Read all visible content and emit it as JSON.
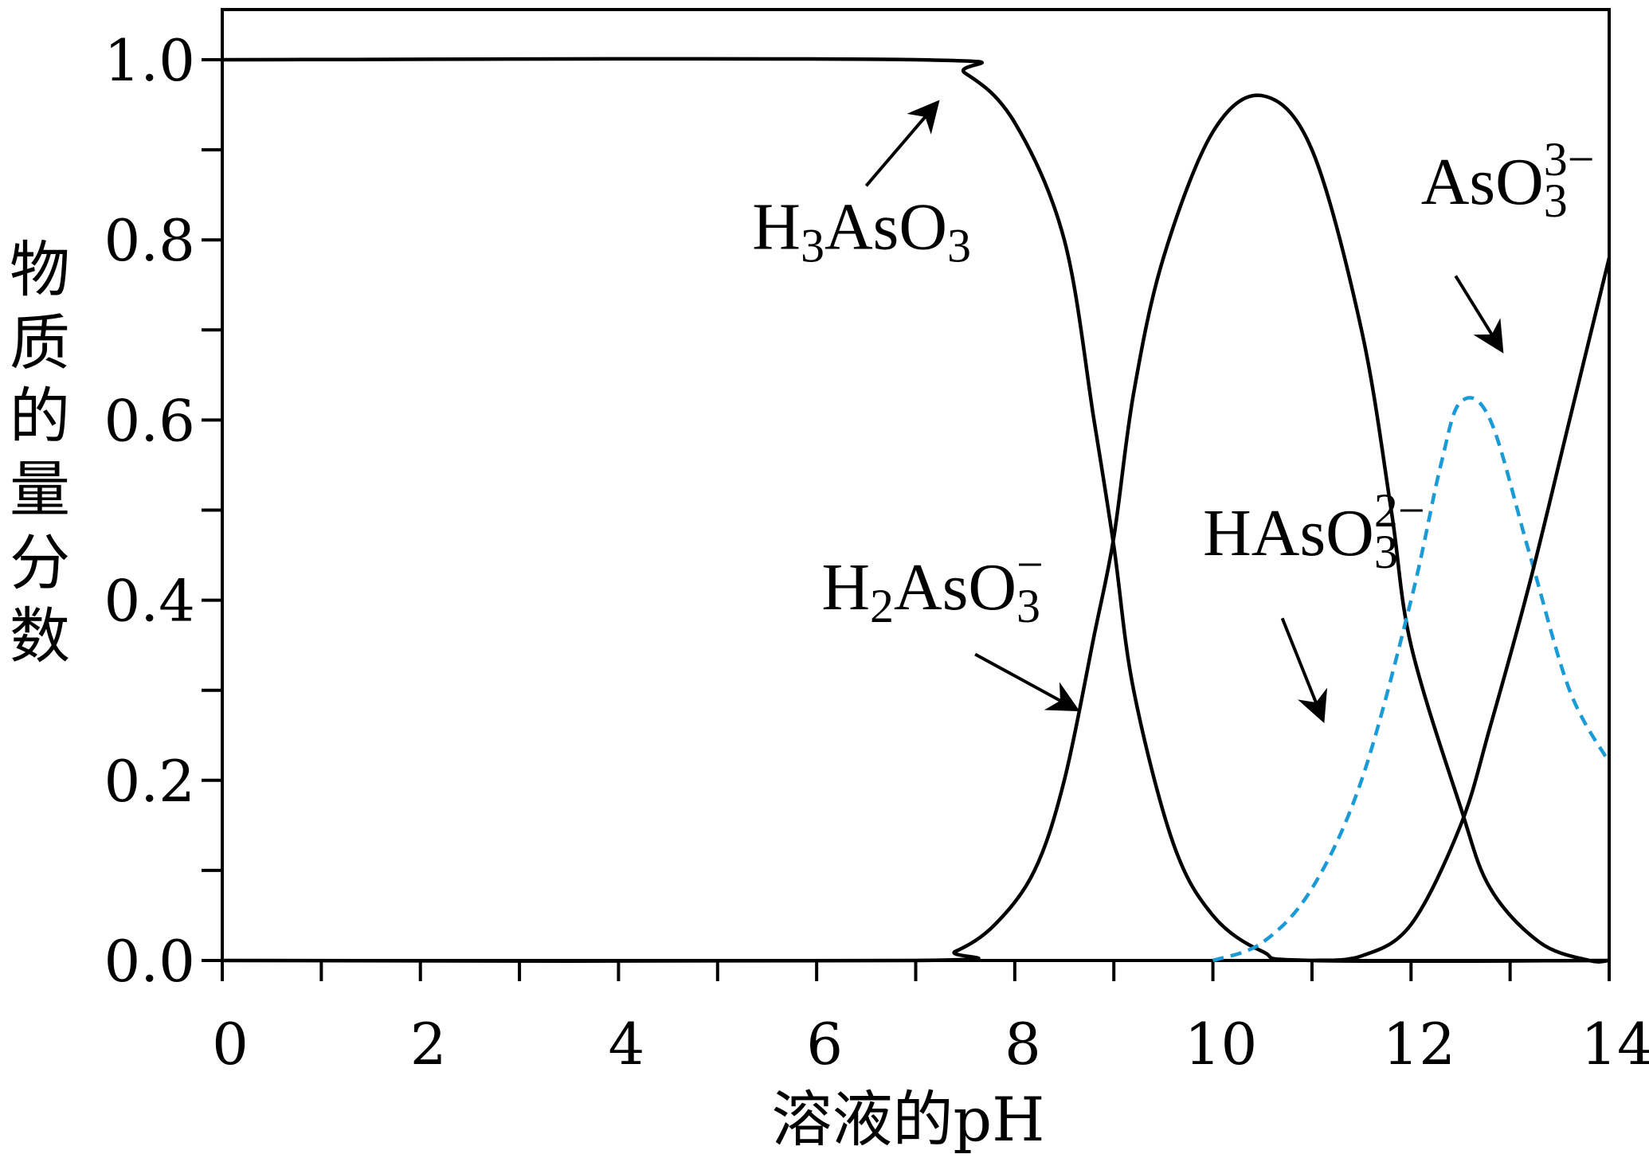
{
  "chart_data": {
    "type": "line",
    "xlabel": "溶液的pH",
    "ylabel": "物质的量分数",
    "xlim": [
      0,
      14
    ],
    "ylim": [
      0,
      1.0
    ],
    "x_ticks": [
      "0",
      "2",
      "4",
      "6",
      "8",
      "10",
      "12",
      "14"
    ],
    "y_ticks": [
      "0.0",
      "0.2",
      "0.4",
      "0.6",
      "0.8",
      "1.0"
    ],
    "grid": false,
    "series": [
      {
        "name": "H3AsO3",
        "color": "#000000",
        "dash": "solid",
        "points": [
          [
            0,
            1.0
          ],
          [
            7.0,
            1.0
          ],
          [
            7.5,
            0.985
          ],
          [
            8.0,
            0.93
          ],
          [
            8.5,
            0.8
          ],
          [
            8.8,
            0.6
          ],
          [
            9.0,
            0.46
          ],
          [
            9.2,
            0.3
          ],
          [
            9.6,
            0.13
          ],
          [
            10.0,
            0.05
          ],
          [
            10.5,
            0.01
          ],
          [
            11.0,
            0.0
          ],
          [
            14,
            0.0
          ]
        ]
      },
      {
        "name": "H2AsO3-",
        "color": "#000000",
        "dash": "solid",
        "points": [
          [
            0,
            0.0
          ],
          [
            7.0,
            0.0
          ],
          [
            7.4,
            0.01
          ],
          [
            7.8,
            0.04
          ],
          [
            8.2,
            0.1
          ],
          [
            8.5,
            0.2
          ],
          [
            8.8,
            0.36
          ],
          [
            9.0,
            0.47
          ],
          [
            9.2,
            0.63
          ],
          [
            9.5,
            0.78
          ],
          [
            10.0,
            0.92
          ],
          [
            10.5,
            0.96
          ],
          [
            11.0,
            0.9
          ],
          [
            11.5,
            0.7
          ],
          [
            11.8,
            0.5
          ],
          [
            12.0,
            0.35
          ],
          [
            12.5,
            0.17
          ],
          [
            12.8,
            0.08
          ],
          [
            13.3,
            0.02
          ],
          [
            13.8,
            0.0
          ],
          [
            14,
            0.0
          ]
        ]
      },
      {
        "name": "HAsO3 2-",
        "color": "#1a9bd8",
        "dash": "dashed",
        "points": [
          [
            10.0,
            0.0
          ],
          [
            10.5,
            0.02
          ],
          [
            11.0,
            0.08
          ],
          [
            11.5,
            0.2
          ],
          [
            12.0,
            0.4
          ],
          [
            12.3,
            0.55
          ],
          [
            12.5,
            0.62
          ],
          [
            12.8,
            0.6
          ],
          [
            13.2,
            0.45
          ],
          [
            13.6,
            0.3
          ],
          [
            14.0,
            0.22
          ]
        ]
      },
      {
        "name": "AsO3 3-",
        "color": "#000000",
        "dash": "solid",
        "points": [
          [
            11.0,
            0.0
          ],
          [
            11.5,
            0.005
          ],
          [
            12.0,
            0.04
          ],
          [
            12.5,
            0.15
          ],
          [
            12.8,
            0.26
          ],
          [
            13.2,
            0.42
          ],
          [
            13.6,
            0.6
          ],
          [
            14.0,
            0.78
          ]
        ]
      }
    ],
    "annotations": [
      {
        "parts": [
          [
            "H",
            ""
          ],
          [
            "3",
            "sub"
          ],
          [
            "AsO",
            ""
          ],
          [
            "3",
            "sub"
          ]
        ],
        "x": 5.35,
        "y": 0.79,
        "arrow_from": [
          6.5,
          0.86
        ],
        "arrow_to": [
          7.2,
          0.95
        ]
      },
      {
        "parts": [
          [
            "H",
            ""
          ],
          [
            "2",
            "sub"
          ],
          [
            "AsO",
            ""
          ],
          [
            "3",
            "sub"
          ],
          [
            "−",
            "sup"
          ]
        ],
        "x": 6.05,
        "y": 0.39,
        "arrow_from": [
          7.6,
          0.34
        ],
        "arrow_to": [
          8.6,
          0.28
        ]
      },
      {
        "parts": [
          [
            "HAsO",
            ""
          ],
          [
            "3",
            "sub"
          ],
          [
            "2−",
            "sup"
          ]
        ],
        "x": 9.9,
        "y": 0.45,
        "arrow_from": [
          10.7,
          0.38
        ],
        "arrow_to": [
          11.1,
          0.27
        ]
      },
      {
        "parts": [
          [
            "AsO",
            ""
          ],
          [
            "3",
            "sub"
          ],
          [
            "3−",
            "sup"
          ]
        ],
        "x": 12.1,
        "y": 0.84,
        "arrow_from": [
          12.45,
          0.76
        ],
        "arrow_to": [
          12.9,
          0.68
        ]
      }
    ]
  }
}
